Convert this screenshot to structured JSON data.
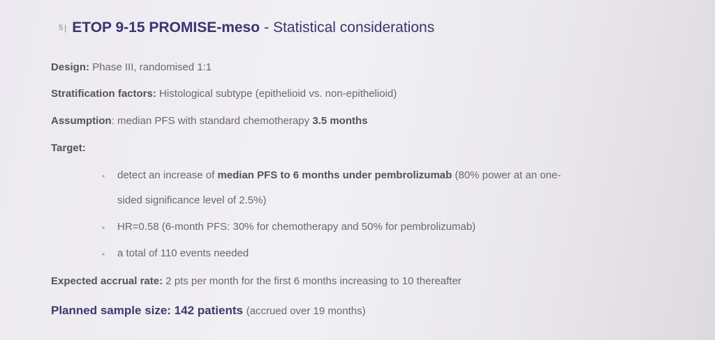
{
  "header": {
    "slide_number": "5",
    "separator": "|",
    "title_bold": "ETOP 9-15 PROMISE-meso",
    "title_dash": "-",
    "title_rest": "Statistical considerations"
  },
  "design": {
    "label": "Design:",
    "text": "Phase III, randomised 1:1"
  },
  "stratification": {
    "label": "Stratification factors:",
    "text": "Histological subtype (epithelioid vs. non-epithelioid)"
  },
  "assumption": {
    "label": "Assumption",
    "text": ": median PFS with standard chemotherapy",
    "bold_value": "3.5 months"
  },
  "target": {
    "label": "Target:",
    "bullet_symbol": "•",
    "bullets": [
      {
        "pre": "detect an increase of",
        "bold": "median PFS to 6 months under pembrolizumab",
        "post": "(80% power at an one-",
        "continuation": "sided significance level of 2.5%)"
      },
      {
        "text": "HR=0.58 (6-month PFS: 30% for chemotherapy and 50% for pembrolizumab)"
      },
      {
        "text": "a total of 110 events needed"
      }
    ]
  },
  "accrual": {
    "label": "Expected accrual rate:",
    "text": "2 pts per month for the first 6 months increasing to 10 thereafter"
  },
  "sample_size": {
    "label": "Planned sample size: 142 patients",
    "text": "(accrued over 19 months)"
  }
}
